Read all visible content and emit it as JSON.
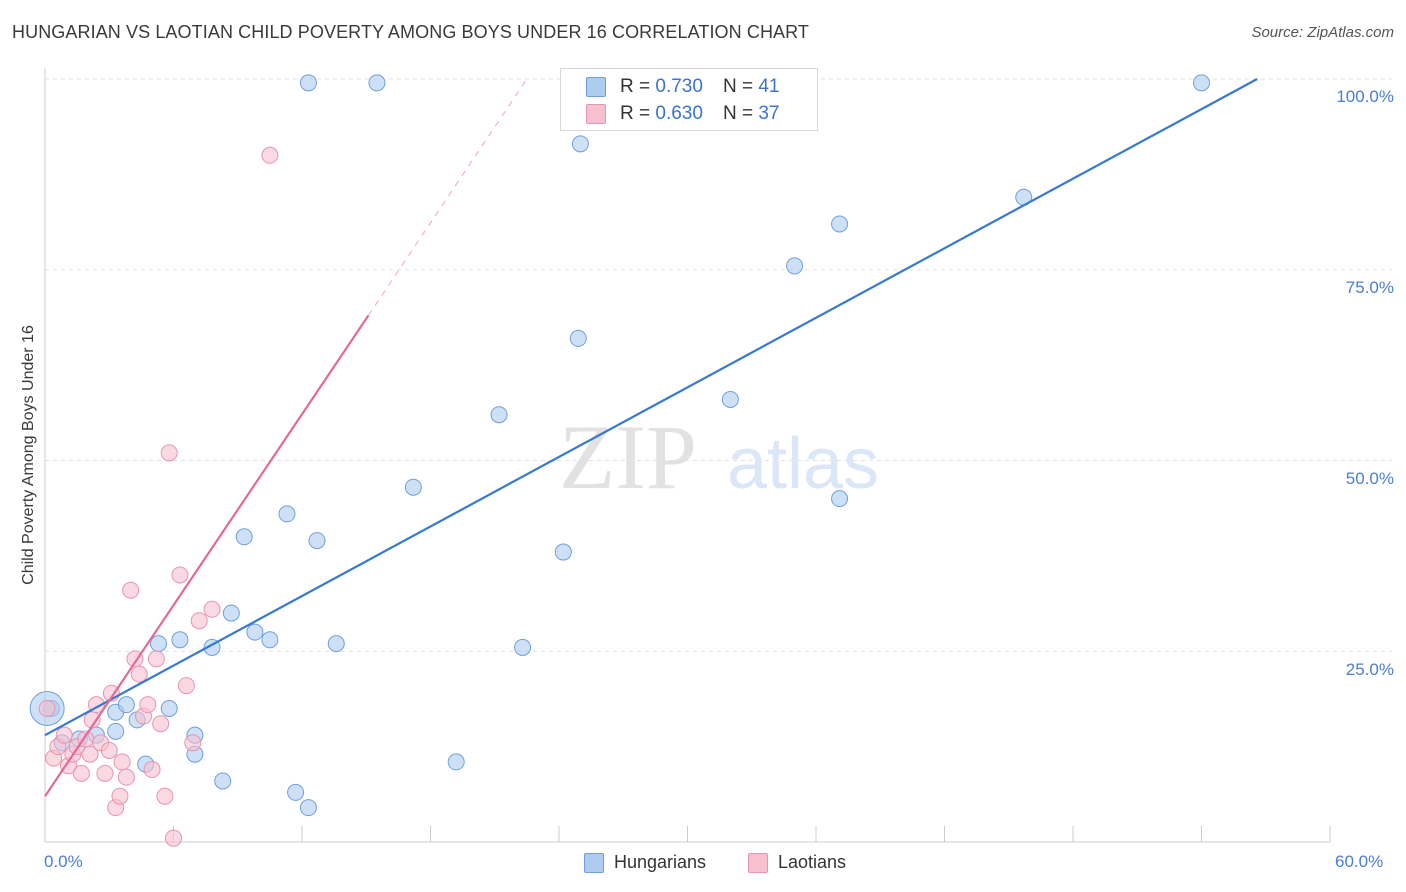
{
  "title": "HUNGARIAN VS LAOTIAN CHILD POVERTY AMONG BOYS UNDER 16 CORRELATION CHART",
  "source": "Source: ZipAtlas.com",
  "watermark": {
    "zip": "ZIP",
    "atlas": "atlas"
  },
  "legend": {
    "rows": [
      {
        "r_label": "R = ",
        "r_value": "0.730",
        "n_label": "N = ",
        "n_value": "41"
      },
      {
        "r_label": "R = ",
        "r_value": "0.630",
        "n_label": "N = ",
        "n_value": "37"
      }
    ]
  },
  "bottom_legend": [
    "Hungarians",
    "Laotians"
  ],
  "colors": {
    "hungarian_fill": "#aecbf0",
    "hungarian_stroke": "#6f9fdc",
    "hungarian_line": "#3778d0",
    "laotian_fill": "#f7c0d0",
    "laotian_stroke": "#e994ae",
    "laotian_line": "#e36a96",
    "grid": "#e2e2e2",
    "tick_label": "#4a7fd0"
  },
  "chart_data": {
    "type": "scatter",
    "title": "HUNGARIAN VS LAOTIAN CHILD POVERTY AMONG BOYS UNDER 16 CORRELATION CHART",
    "xlabel": "",
    "ylabel": "Child Poverty Among Boys Under 16",
    "xlim": [
      0,
      60
    ],
    "ylim": [
      0,
      100
    ],
    "x_tick_labels": [
      "0.0%",
      "60.0%"
    ],
    "y_ticks": [
      25,
      50,
      75,
      100
    ],
    "y_tick_labels": [
      "25.0%",
      "50.0%",
      "75.0%",
      "100.0%"
    ],
    "grid": true,
    "legend_position": "top-center",
    "series": [
      {
        "name": "Hungarians",
        "r": 0.73,
        "n": 41,
        "trend": {
          "x0": 0,
          "y0": 14.0,
          "x1": 56.6,
          "y1": 100
        },
        "points": [
          [
            0.3,
            17.5
          ],
          [
            0.8,
            13.0
          ],
          [
            1.6,
            13.5
          ],
          [
            2.4,
            14.0
          ],
          [
            3.3,
            14.5
          ],
          [
            3.3,
            17.0
          ],
          [
            3.8,
            18.0
          ],
          [
            4.3,
            16.0
          ],
          [
            4.7,
            10.2
          ],
          [
            5.3,
            26.0
          ],
          [
            5.8,
            17.5
          ],
          [
            6.3,
            26.5
          ],
          [
            7.0,
            14.0
          ],
          [
            7.0,
            11.5
          ],
          [
            7.8,
            25.5
          ],
          [
            8.3,
            8.0
          ],
          [
            8.7,
            30.0
          ],
          [
            9.3,
            40.0
          ],
          [
            9.8,
            27.5
          ],
          [
            10.5,
            26.5
          ],
          [
            11.3,
            43.0
          ],
          [
            11.7,
            6.5
          ],
          [
            12.3,
            4.5
          ],
          [
            12.3,
            99.5
          ],
          [
            12.7,
            39.5
          ],
          [
            13.6,
            26.0
          ],
          [
            15.5,
            99.5
          ],
          [
            17.2,
            46.5
          ],
          [
            19.2,
            10.5
          ],
          [
            21.2,
            56.0
          ],
          [
            22.3,
            25.5
          ],
          [
            24.2,
            38.0
          ],
          [
            24.9,
            66.0
          ],
          [
            25.0,
            91.5
          ],
          [
            32.0,
            58.0
          ],
          [
            35.0,
            75.5
          ],
          [
            37.1,
            81.0
          ],
          [
            37.1,
            45.0
          ],
          [
            45.7,
            84.5
          ],
          [
            54.0,
            99.5
          ],
          [
            0.1,
            17.5
          ]
        ]
      },
      {
        "name": "Laotians",
        "r": 0.63,
        "n": 37,
        "trend": {
          "x0": 0,
          "y0": 6.0,
          "x1": 15.1,
          "y1": 69.0
        },
        "trend_extension": {
          "x0": 15.1,
          "y0": 69.0,
          "x1": 22.5,
          "y1": 100
        },
        "points": [
          [
            0.1,
            17.5
          ],
          [
            0.4,
            11.0
          ],
          [
            0.6,
            12.5
          ],
          [
            0.9,
            14.0
          ],
          [
            1.1,
            10.0
          ],
          [
            1.3,
            11.5
          ],
          [
            1.5,
            12.5
          ],
          [
            1.7,
            9.0
          ],
          [
            1.9,
            13.5
          ],
          [
            2.1,
            11.5
          ],
          [
            2.2,
            16.0
          ],
          [
            2.4,
            18.0
          ],
          [
            2.6,
            13.0
          ],
          [
            2.8,
            9.0
          ],
          [
            3.0,
            12.0
          ],
          [
            3.1,
            19.5
          ],
          [
            3.3,
            4.5
          ],
          [
            3.5,
            6.0
          ],
          [
            3.6,
            10.5
          ],
          [
            3.8,
            8.5
          ],
          [
            4.0,
            33.0
          ],
          [
            4.2,
            24.0
          ],
          [
            4.4,
            22.0
          ],
          [
            4.6,
            16.5
          ],
          [
            4.8,
            18.0
          ],
          [
            5.0,
            9.5
          ],
          [
            5.2,
            24.0
          ],
          [
            5.4,
            15.5
          ],
          [
            5.6,
            6.0
          ],
          [
            5.8,
            51.0
          ],
          [
            6.0,
            0.5
          ],
          [
            6.3,
            35.0
          ],
          [
            6.6,
            20.5
          ],
          [
            6.9,
            13.0
          ],
          [
            7.2,
            29.0
          ],
          [
            7.8,
            30.5
          ],
          [
            10.5,
            90.0
          ]
        ]
      }
    ]
  }
}
